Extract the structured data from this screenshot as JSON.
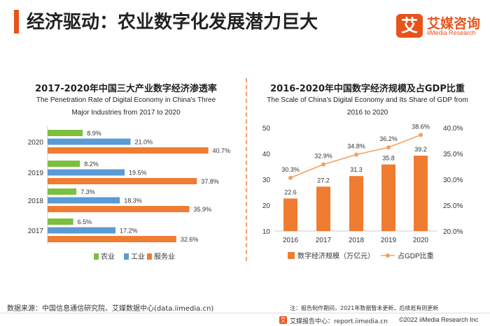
{
  "header": {
    "title": "经济驱动：农业数字化发展潜力巨大",
    "logo_mark": "艾",
    "logo_cn": "艾媒咨询",
    "logo_en": "iiMedia Research"
  },
  "colors": {
    "accent": "#e8531c",
    "agriculture": "#7cbf3f",
    "industry": "#5b9bd5",
    "services": "#f07c32",
    "bar_orange": "#f07c32",
    "line_orange": "#f5a05f"
  },
  "chart_data": [
    {
      "type": "bar",
      "orientation": "horizontal",
      "title": "2017-2020年中国三大产业数字经济渗透率",
      "subtitle": "The Penetration Rate of Digital Economy in China's Three Major Industries from 2017 to 2020",
      "categories": [
        "2017",
        "2018",
        "2019",
        "2020"
      ],
      "series": [
        {
          "name": "农业",
          "values": [
            6.5,
            7.3,
            8.2,
            8.9
          ],
          "labels": [
            "6.5%",
            "7.3%",
            "8.2%",
            "8.9%"
          ]
        },
        {
          "name": "工业",
          "values": [
            17.2,
            18.3,
            19.5,
            21.0
          ],
          "labels": [
            "17.2%",
            "18.3%",
            "19.5%",
            "21.0%"
          ]
        },
        {
          "name": "服务业",
          "values": [
            32.6,
            35.9,
            37.8,
            40.7
          ],
          "labels": [
            "32.6%",
            "35.9%",
            "37.8%",
            "40.7%"
          ]
        }
      ],
      "unit": "%",
      "legend_position": "bottom"
    },
    {
      "type": "bar+line",
      "title": "2016-2020年中国数字经济规模及占GDP比重",
      "subtitle": "The Scale of China's Digital Economy and Its Share of GDP from 2016 to 2020",
      "categories": [
        "2016",
        "2017",
        "2018",
        "2019",
        "2020"
      ],
      "series": [
        {
          "name": "数字经济规模（万亿元）",
          "type": "bar",
          "axis": "left",
          "values": [
            22.6,
            27.2,
            31.3,
            35.8,
            39.2
          ],
          "labels": [
            "22.6",
            "27.2",
            "31.3",
            "35.8",
            "39.2"
          ]
        },
        {
          "name": "占GDP比重",
          "type": "line",
          "axis": "right",
          "values": [
            30.3,
            32.9,
            34.8,
            36.2,
            38.6
          ],
          "labels": [
            "30.3%",
            "32.9%",
            "34.8%",
            "36.2%",
            "38.6%"
          ]
        }
      ],
      "y_left": {
        "range": [
          10,
          50
        ],
        "ticks": [
          "10",
          "20",
          "30",
          "40",
          "50"
        ]
      },
      "y_right": {
        "range": [
          20,
          40
        ],
        "ticks": [
          "20.0%",
          "25.0%",
          "30.0%",
          "35.0%",
          "40.0%"
        ]
      },
      "grid": false,
      "legend_position": "bottom"
    }
  ],
  "footer": {
    "source": "数据来源：中国信息通信研究院、艾媒数据中心(data.iimedia.cn)",
    "note": "注：报告制作期间，2021年数据暂未更新，后续若有则更新",
    "left_mark": "艾",
    "left_text": "艾媒报告中心：report.iimedia.cn",
    "right_text": "©2022  iiMedia Research  Inc"
  }
}
